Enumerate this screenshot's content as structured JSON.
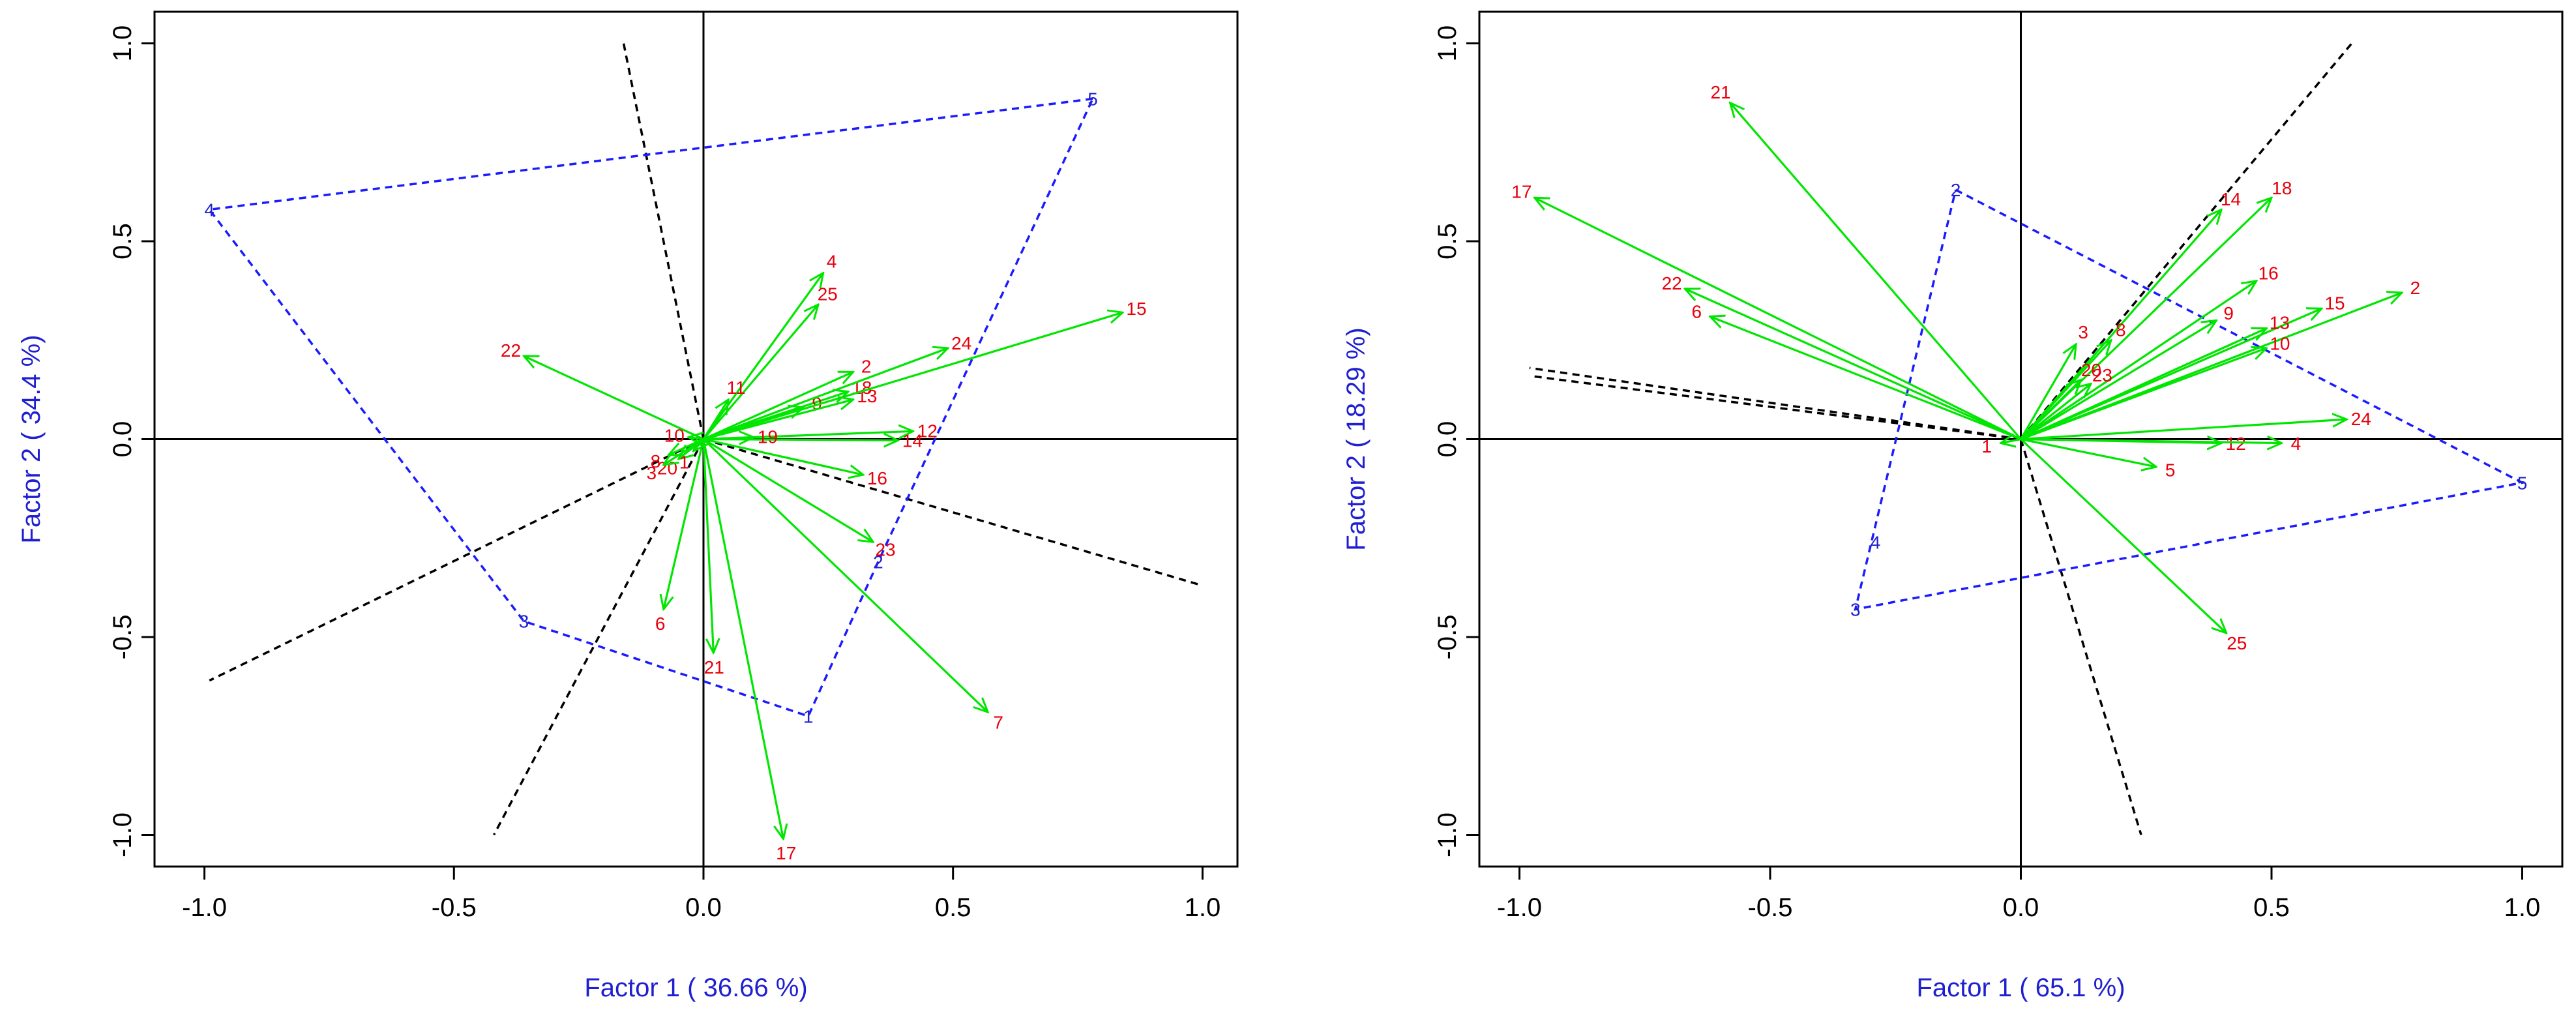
{
  "colors": {
    "axis_title": "#1f1fd1",
    "vector": "#00e600",
    "vector_label": "#e8000b",
    "polygon": "#1b1bff",
    "divider": "#000000"
  },
  "chart_data": [
    {
      "type": "scatter",
      "subtype": "biplot",
      "xlabel": "Factor 1 ( 36.66 %)",
      "ylabel": "Factor 2 ( 34.4 %)",
      "xlim": [
        -1.1,
        1.07
      ],
      "ylim": [
        -1.08,
        1.08
      ],
      "xticks": [
        -1.0,
        -0.5,
        0.0,
        0.5,
        1.0
      ],
      "yticks": [
        -1.0,
        -0.5,
        0.0,
        0.5,
        1.0
      ],
      "xtick_labels": [
        "-1.0",
        "-0.5",
        "0.0",
        "0.5",
        "1.0"
      ],
      "ytick_labels": [
        "-1.0",
        "-0.5",
        "0.0",
        "0.5",
        "1.0"
      ],
      "vectors": [
        {
          "label": "2",
          "x": 0.3,
          "y": 0.17
        },
        {
          "label": "4",
          "x": 0.24,
          "y": 0.42
        },
        {
          "label": "25",
          "x": 0.23,
          "y": 0.34
        },
        {
          "label": "18",
          "x": 0.29,
          "y": 0.12
        },
        {
          "label": "9",
          "x": 0.2,
          "y": 0.08
        },
        {
          "label": "13",
          "x": 0.3,
          "y": 0.1
        },
        {
          "label": "24",
          "x": 0.49,
          "y": 0.23
        },
        {
          "label": "15",
          "x": 0.84,
          "y": 0.32
        },
        {
          "label": "12",
          "x": 0.42,
          "y": 0.02
        },
        {
          "label": "14",
          "x": 0.39,
          "y": -0.003
        },
        {
          "label": "16",
          "x": 0.32,
          "y": -0.09
        },
        {
          "label": "23",
          "x": 0.34,
          "y": -0.26
        },
        {
          "label": "7",
          "x": 0.57,
          "y": -0.69
        },
        {
          "label": "17",
          "x": 0.16,
          "y": -1.01
        },
        {
          "label": "21",
          "x": 0.02,
          "y": -0.54
        },
        {
          "label": "6",
          "x": -0.08,
          "y": -0.43
        },
        {
          "label": "22",
          "x": -0.36,
          "y": 0.21
        },
        {
          "label": "19",
          "x": 0.1,
          "y": 0.005
        },
        {
          "label": "11",
          "x": 0.05,
          "y": 0.1
        },
        {
          "label": "10",
          "x": -0.03,
          "y": 0.005
        },
        {
          "label": "8",
          "x": -0.07,
          "y": -0.04
        },
        {
          "label": "20",
          "x": -0.05,
          "y": -0.05
        },
        {
          "label": "3",
          "x": -0.08,
          "y": -0.065
        },
        {
          "label": "1",
          "x": -0.02,
          "y": -0.03
        }
      ],
      "group_points": [
        {
          "label": "5",
          "x": 0.78,
          "y": 0.86
        },
        {
          "label": "4",
          "x": -0.99,
          "y": 0.58
        },
        {
          "label": "3",
          "x": -0.36,
          "y": -0.46
        },
        {
          "label": "1",
          "x": 0.21,
          "y": -0.7
        },
        {
          "label": "2",
          "x": 0.35,
          "y": -0.31
        }
      ],
      "polygon_order": [
        "5",
        "4",
        "3",
        "1",
        "2",
        "5"
      ],
      "dividers": [
        {
          "from": [
            0,
            0
          ],
          "to": [
            -0.16,
            1.0
          ]
        },
        {
          "from": [
            0,
            0
          ],
          "to": [
            -0.99,
            -0.61
          ]
        },
        {
          "from": [
            0,
            0
          ],
          "to": [
            -0.42,
            -1.0
          ]
        },
        {
          "from": [
            0,
            0
          ],
          "to": [
            1.0,
            -0.37
          ]
        }
      ]
    },
    {
      "type": "scatter",
      "subtype": "biplot",
      "xlabel": "Factor 1 ( 65.1 %)",
      "ylabel": "Factor 2 ( 18.29 %)",
      "xlim": [
        -1.08,
        1.08
      ],
      "ylim": [
        -1.08,
        1.08
      ],
      "xticks": [
        -1.0,
        -0.5,
        0.0,
        0.5,
        1.0
      ],
      "yticks": [
        -1.0,
        -0.5,
        0.0,
        0.5,
        1.0
      ],
      "xtick_labels": [
        "-1.0",
        "-0.5",
        "0.0",
        "0.5",
        "1.0"
      ],
      "ytick_labels": [
        "-1.0",
        "-0.5",
        "0.0",
        "0.5",
        "1.0"
      ],
      "vectors": [
        {
          "label": "21",
          "x": -0.58,
          "y": 0.85
        },
        {
          "label": "17",
          "x": -0.97,
          "y": 0.61
        },
        {
          "label": "22",
          "x": -0.67,
          "y": 0.38
        },
        {
          "label": "6",
          "x": -0.62,
          "y": 0.31
        },
        {
          "label": "14",
          "x": 0.4,
          "y": 0.58
        },
        {
          "label": "18",
          "x": 0.5,
          "y": 0.61
        },
        {
          "label": "16",
          "x": 0.47,
          "y": 0.4
        },
        {
          "label": "2",
          "x": 0.76,
          "y": 0.37
        },
        {
          "label": "15",
          "x": 0.6,
          "y": 0.33
        },
        {
          "label": "13",
          "x": 0.49,
          "y": 0.28
        },
        {
          "label": "9",
          "x": 0.39,
          "y": 0.3
        },
        {
          "label": "10",
          "x": 0.49,
          "y": 0.23
        },
        {
          "label": "3",
          "x": 0.11,
          "y": 0.24
        },
        {
          "label": "8",
          "x": 0.18,
          "y": 0.25
        },
        {
          "label": "20",
          "x": 0.12,
          "y": 0.15
        },
        {
          "label": "23",
          "x": 0.14,
          "y": 0.14
        },
        {
          "label": "24",
          "x": 0.65,
          "y": 0.05
        },
        {
          "label": "12",
          "x": 0.4,
          "y": -0.01
        },
        {
          "label": "4",
          "x": 0.52,
          "y": -0.01
        },
        {
          "label": "5",
          "x": 0.27,
          "y": -0.07
        },
        {
          "label": "25",
          "x": 0.41,
          "y": -0.49
        },
        {
          "label": "1",
          "x": -0.04,
          "y": -0.01
        }
      ],
      "group_points": [
        {
          "label": "2",
          "x": -0.13,
          "y": 0.63
        },
        {
          "label": "5",
          "x": 1.0,
          "y": -0.11
        },
        {
          "label": "4",
          "x": -0.29,
          "y": -0.26
        },
        {
          "label": "3",
          "x": -0.33,
          "y": -0.43
        }
      ],
      "polygon_order": [
        "2",
        "5",
        "3",
        "2"
      ],
      "dividers": [
        {
          "from": [
            0,
            0
          ],
          "to": [
            0.66,
            1.0
          ]
        },
        {
          "from": [
            0,
            0
          ],
          "to": [
            -0.98,
            0.18
          ]
        },
        {
          "from": [
            0,
            0
          ],
          "to": [
            -0.98,
            0.16
          ]
        },
        {
          "from": [
            0,
            0
          ],
          "to": [
            0.24,
            -1.0
          ]
        }
      ]
    }
  ]
}
